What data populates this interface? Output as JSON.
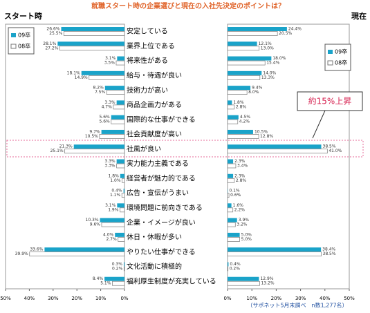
{
  "title": "就職スタート時の企業選びと現在の入社先決定のポイントは？",
  "footnote": "（サポネット5月末調べ　n数1,277名）",
  "chart_data": [
    {
      "type": "bar",
      "orientation": "horizontal",
      "reversed": true,
      "panel_label": "スタート時",
      "categories": [
        "安定している",
        "業界上位である",
        "将来性がある",
        "給与・待遇が良い",
        "技術力が高い",
        "商品企画力がある",
        "国際的な仕事ができる",
        "社会貢献度が高い",
        "社風が良い",
        "実力能力主義である",
        "経営者が魅力的である",
        "広告・宣伝がうまい",
        "環境問題に前向きである",
        "企業・イメージが良い",
        "休日・休暇が多い",
        "やりたい仕事ができる",
        "文化活動に積極的",
        "福利厚生制度が充実している"
      ],
      "series": [
        {
          "name": "09卒",
          "color": "#1aa3c9",
          "values": [
            26.6,
            28.1,
            3.1,
            18.1,
            8.2,
            3.3,
            5.6,
            9.7,
            21.3,
            3.3,
            1.8,
            0.4,
            3.1,
            10.3,
            4.0,
            33.6,
            0.3,
            8.4
          ],
          "value_labels": [
            "26.6%",
            "28.1%",
            "3.1%",
            "18.1%",
            "8.2%",
            "3.3%",
            "5.6%",
            "9.7%",
            "21.3%",
            "3.3%",
            "1.8%",
            "0.4%",
            "3.1%",
            "10.3%",
            "4.0%",
            "33.6%",
            "0.3%",
            "8.4%"
          ]
        },
        {
          "name": "08卒",
          "color": "#ffffff",
          "values": [
            25.5,
            27.2,
            3.5,
            14.9,
            7.5,
            4.7,
            5.6,
            10.5,
            25.1,
            3.3,
            1.0,
            1.1,
            1.9,
            9.6,
            2.7,
            39.9,
            0.2,
            5.1
          ],
          "value_labels": [
            "25.5%",
            "27.2%",
            "3.5%",
            "14.9%",
            "7.5%",
            "4.7%",
            "5.6%",
            "10.5%",
            "25.1%",
            "3.3%",
            "1.0%",
            "1.1%",
            "1.9%",
            "9.6%",
            "2.7%",
            "39.9%",
            "0.2%",
            "5.1%"
          ]
        }
      ],
      "xlim": [
        0,
        50
      ],
      "xticks": [
        {
          "value": 0,
          "label": "0%"
        },
        {
          "value": 10,
          "label": "10%"
        },
        {
          "value": 20,
          "label": "20%"
        },
        {
          "value": 30,
          "label": "30%"
        },
        {
          "value": 40,
          "label": "40%"
        },
        {
          "value": 50,
          "label": "50%"
        }
      ],
      "legend": "upper-left"
    },
    {
      "type": "bar",
      "orientation": "horizontal",
      "reversed": false,
      "panel_label": "現在",
      "series": [
        {
          "name": "09卒",
          "color": "#1aa3c9",
          "values": [
            24.4,
            12.1,
            18.0,
            14.0,
            9.4,
            1.8,
            4.5,
            10.5,
            38.5,
            2.3,
            2.3,
            0.1,
            1.6,
            3.9,
            5.0,
            38.4,
            0.4,
            12.9
          ],
          "value_labels": [
            "24.4%",
            "12.1%",
            "18.0%",
            "14.0%",
            "9.4%",
            "1.8%",
            "4.5%",
            "10.5%",
            "38.5%",
            "2.3%",
            "2.3%",
            "0.1%",
            "1.6%",
            "3.9%",
            "5.0%",
            "38.4%",
            "0.4%",
            "12.9%"
          ]
        },
        {
          "name": "08卒",
          "color": "#ffffff",
          "values": [
            20.5,
            13.0,
            15.4,
            13.3,
            8.0,
            2.8,
            4.2,
            12.8,
            41.0,
            3.4,
            2.8,
            0.6,
            2.2,
            3.2,
            5.0,
            38.5,
            0.2,
            13.2
          ],
          "value_labels": [
            "20.5%",
            "13.0%",
            "15.4%",
            "13.3%",
            "8.0%",
            "2.8%",
            "4.2%",
            "12.8%",
            "41.0%",
            "3.4%",
            "2.8%",
            "0.6%",
            "2.2%",
            "3.2%",
            "5.0%",
            "38.5%",
            "0.2%",
            "13.2%"
          ]
        }
      ],
      "xlim": [
        0,
        50
      ],
      "xticks": [
        {
          "value": 0,
          "label": "0%"
        },
        {
          "value": 10,
          "label": "10%"
        },
        {
          "value": 20,
          "label": "20%"
        },
        {
          "value": 30,
          "label": "30%"
        },
        {
          "value": 40,
          "label": "40%"
        },
        {
          "value": 50,
          "label": "50%"
        }
      ],
      "legend": "upper-right",
      "annotation": "約15%上昇"
    }
  ]
}
